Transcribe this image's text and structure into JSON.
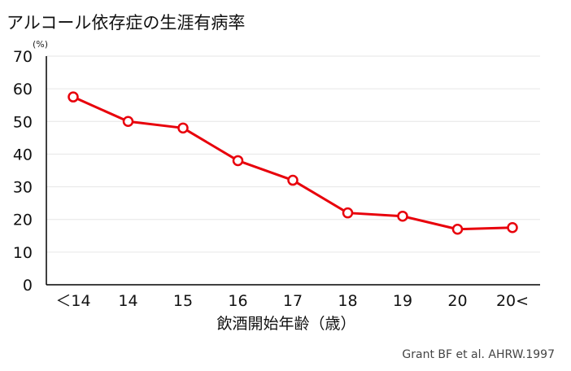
{
  "chart_data": {
    "type": "line",
    "title": "アルコール依存症の生涯有病率",
    "unit": "(%)",
    "xlabel": "飲酒開始年齢（歳）",
    "ylabel": "",
    "categories": [
      "＜14",
      "14",
      "15",
      "16",
      "17",
      "18",
      "19",
      "20",
      "20<"
    ],
    "series": [
      {
        "values": [
          57.5,
          50,
          48,
          38,
          32,
          22,
          21,
          17,
          17.5
        ]
      }
    ],
    "ylim": [
      0,
      70
    ],
    "yticks": [
      0,
      10,
      20,
      30,
      40,
      50,
      60,
      70
    ],
    "grid": true,
    "colors": {
      "line": "#e8000b",
      "marker_fill": "#ffffff",
      "grid": "#e6e6e6",
      "axis": "#000000"
    }
  },
  "source": "Grant BF et al. AHRW.1997"
}
